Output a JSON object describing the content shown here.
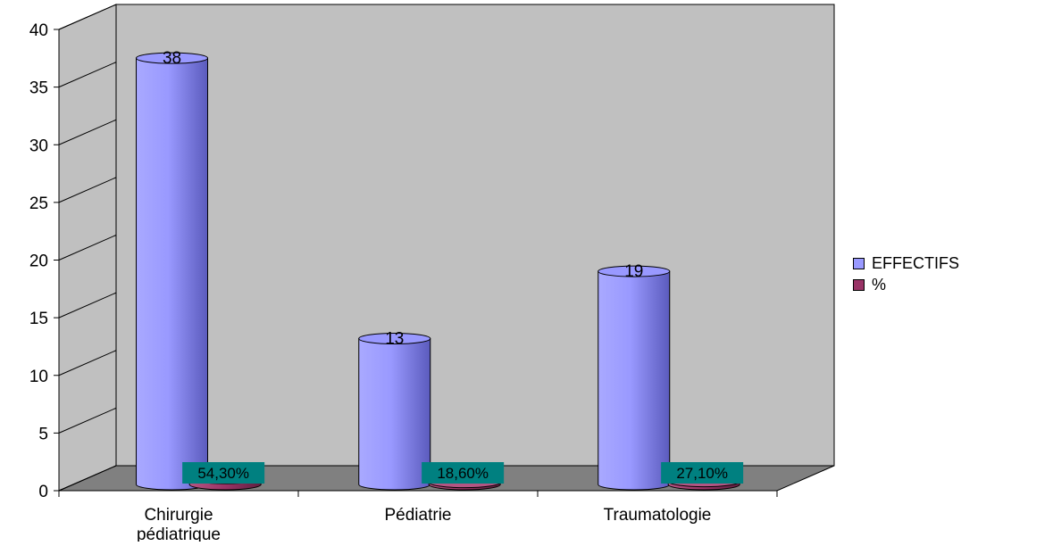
{
  "chart_data": {
    "type": "bar",
    "title": "",
    "xlabel": "",
    "ylabel": "",
    "categories": [
      "Chirurgie pédiatrique",
      "Pédiatrie",
      "Traumatologie"
    ],
    "category_lines": [
      [
        "Chirurgie",
        "pédiatrique"
      ],
      [
        "Pédiatrie"
      ],
      [
        "Traumatologie"
      ]
    ],
    "series": [
      {
        "name": "EFFECTIFS",
        "values": [
          38,
          13,
          19
        ],
        "color": "#9999ff"
      },
      {
        "name": "%",
        "values": [
          0.543,
          0.186,
          0.271
        ],
        "color": "#993366"
      }
    ],
    "data_labels": [
      [
        "38",
        "13",
        "19"
      ],
      [
        "54,30%",
        "18,60%",
        "27,10%"
      ]
    ],
    "y_ticks": [
      "0",
      "5",
      "10",
      "15",
      "20",
      "25",
      "30",
      "35",
      "40"
    ],
    "ylim": [
      0,
      40
    ],
    "grid": false,
    "legend_position": "right",
    "colors": {
      "wall": "#c0c0c0",
      "floor": "#808080",
      "percent_label_bg": "#008080"
    }
  },
  "legend": {
    "items": [
      {
        "label": "EFFECTIFS",
        "color": "#9999ff"
      },
      {
        "label": "%",
        "color": "#993366"
      }
    ]
  }
}
